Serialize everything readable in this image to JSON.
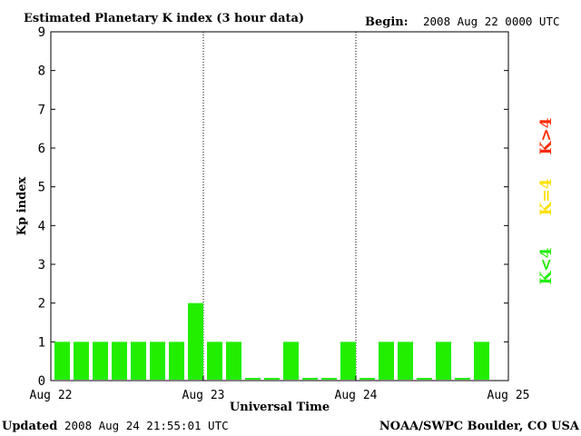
{
  "header": {
    "title": "Estimated Planetary K index (3 hour data)",
    "begin_label": "Begin:",
    "begin_value": "2008 Aug 22 0000 UTC"
  },
  "footer": {
    "updated_label": "Updated",
    "updated_value": "2008 Aug 24 21:55:01 UTC",
    "source": "NOAA/SWPC Boulder, CO USA"
  },
  "legend": {
    "items": [
      {
        "label": "K>4",
        "color": "#ff2a00"
      },
      {
        "label": "K=4",
        "color": "#ffe000"
      },
      {
        "label": "K<4",
        "color": "#22ee00"
      }
    ]
  },
  "chart_data": {
    "type": "bar",
    "title": "Estimated Planetary K index (3 hour data)",
    "xlabel": "Universal Time",
    "ylabel": "Kp index",
    "ylim": [
      0,
      9
    ],
    "yticks": [
      0,
      1,
      2,
      3,
      4,
      5,
      6,
      7,
      8,
      9
    ],
    "x_tick_labels": [
      "Aug 22",
      "Aug 23",
      "Aug 24",
      "Aug 25"
    ],
    "bars_per_day": 8,
    "bar_color": "#22ee00",
    "values": [
      1,
      1,
      1,
      1,
      1,
      1,
      1,
      2,
      1,
      1,
      0,
      0,
      1,
      0,
      0,
      1,
      0,
      1,
      1,
      0,
      1,
      0,
      1
    ]
  }
}
